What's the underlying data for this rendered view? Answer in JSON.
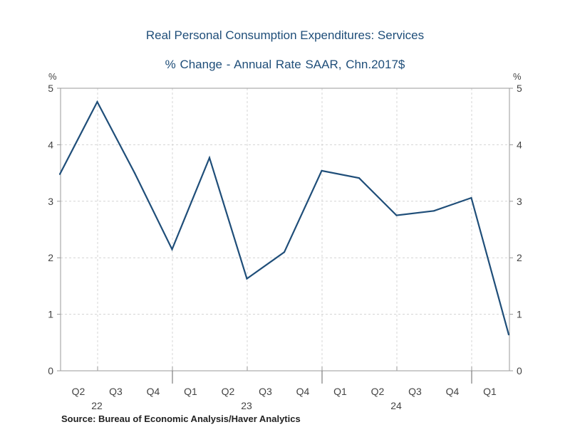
{
  "chart_data": {
    "type": "line",
    "title": "Real Personal Consumption Expenditures: Services",
    "subtitle": "% Change - Annual Rate    SAAR, Chn.2017$",
    "ylabel_left": "%",
    "ylabel_right": "%",
    "ylim": [
      0,
      5
    ],
    "yticks": [
      0,
      1,
      2,
      3,
      4,
      5
    ],
    "grid": true,
    "quarters": [
      "Q2",
      "Q3",
      "Q4",
      "Q1",
      "Q2",
      "Q3",
      "Q4",
      "Q1",
      "Q2",
      "Q3",
      "Q4",
      "Q1"
    ],
    "years": [
      {
        "label": "22",
        "quarter_index": 0
      },
      {
        "label": "23",
        "quarter_index": 4
      },
      {
        "label": "24",
        "quarter_index": 8
      }
    ],
    "series": [
      {
        "color": "#1f4e79",
        "x": [
          "2022-Q1",
          "2022-Q2",
          "2022-Q3",
          "2022-Q4",
          "2023-Q1",
          "2023-Q2",
          "2023-Q3",
          "2023-Q4",
          "2024-Q1",
          "2024-Q2",
          "2024-Q3",
          "2024-Q4",
          "2025-Q1"
        ],
        "values": [
          3.48,
          4.76,
          3.5,
          2.15,
          3.77,
          1.63,
          2.1,
          3.54,
          3.41,
          2.75,
          2.83,
          3.06,
          0.64
        ]
      }
    ]
  },
  "source": "Source:  Bureau of Economic Analysis/Haver Analytics"
}
